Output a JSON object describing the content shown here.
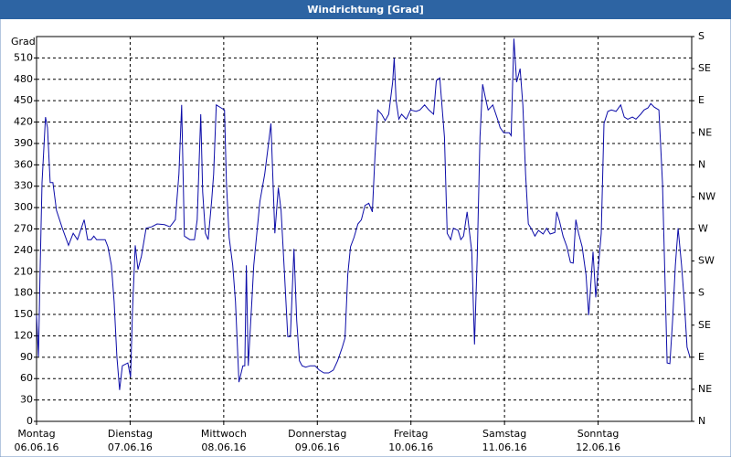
{
  "chart_data": {
    "type": "line",
    "title": "Windrichtung [Grad]",
    "ylabel": "Grad",
    "xlim": [
      0,
      168
    ],
    "xticks": [
      {
        "value": 0,
        "label": "Montag"
      },
      {
        "value": 24,
        "label": "Dienstag"
      },
      {
        "value": 48,
        "label": "Mittwoch"
      },
      {
        "value": 72,
        "label": "Donnerstag"
      },
      {
        "value": 96,
        "label": "Freitag"
      },
      {
        "value": 120,
        "label": "Samstag"
      },
      {
        "value": 144,
        "label": "Sonntag"
      }
    ],
    "xtick_dates": [
      "06.06.16",
      "07.06.16",
      "08.06.16",
      "09.06.16",
      "10.06.16",
      "11.06.16",
      "12.06.16"
    ],
    "ylim": [
      0,
      540
    ],
    "yticks": [
      0,
      30,
      60,
      90,
      120,
      150,
      180,
      210,
      240,
      270,
      300,
      330,
      360,
      390,
      420,
      450,
      480,
      510
    ],
    "y2lim": [
      0,
      540
    ],
    "y2ticks": [
      {
        "value": 0,
        "label": "N"
      },
      {
        "value": 45,
        "label": "NE"
      },
      {
        "value": 90,
        "label": "E"
      },
      {
        "value": 135,
        "label": "SE"
      },
      {
        "value": 180,
        "label": "S"
      },
      {
        "value": 225,
        "label": "SW"
      },
      {
        "value": 270,
        "label": "W"
      },
      {
        "value": 315,
        "label": "NW"
      },
      {
        "value": 360,
        "label": "N"
      },
      {
        "value": 405,
        "label": "NE"
      },
      {
        "value": 450,
        "label": "E"
      },
      {
        "value": 495,
        "label": "SE"
      },
      {
        "value": 540,
        "label": "S"
      }
    ],
    "grid": true,
    "series": [
      {
        "name": "Windrichtung",
        "color": "#0c0ca8",
        "x": [
          0,
          0.5,
          0.9,
          1.4,
          1.9,
          2.3,
          2.8,
          3.5,
          4.2,
          5.1,
          6.6,
          8.2,
          9.4,
          10.5,
          12.2,
          13.1,
          14.0,
          14.7,
          15.4,
          16.4,
          17.6,
          18.3,
          19.2,
          19.9,
          20.6,
          21.3,
          22.0,
          23.4,
          24.1,
          24.6,
          25.3,
          26.0,
          26.9,
          28.1,
          29.5,
          30.9,
          32.8,
          34.2,
          35.6,
          36.5,
          37.2,
          37.9,
          39.3,
          40.5,
          41.2,
          42.1,
          42.6,
          43.3,
          44.0,
          44.9,
          45.4,
          46.1,
          47.3,
          48.2,
          48.7,
          49.4,
          50.3,
          51.0,
          51.9,
          52.9,
          53.4,
          53.8,
          54.3,
          55.2,
          55.7,
          56.6,
          57.3,
          58.5,
          59.4,
          60.1,
          61.1,
          62.0,
          62.7,
          63.6,
          64.4,
          65.1,
          66.0,
          66.7,
          67.4,
          68.1,
          69.0,
          70.2,
          71.4,
          72.5,
          73.7,
          74.9,
          76.1,
          77.2,
          78.4,
          79.1,
          79.8,
          80.5,
          81.4,
          82.4,
          83.3,
          84.2,
          85.2,
          86.1,
          86.8,
          87.5,
          88.5,
          89.4,
          90.3,
          91.3,
          91.7,
          92.2,
          92.9,
          93.6,
          94.8,
          95.9,
          97.3,
          98.3,
          99.5,
          100.6,
          101.8,
          102.5,
          103.4,
          104.6,
          105.3,
          106.2,
          106.9,
          108.1,
          108.8,
          109.5,
          110.4,
          111.6,
          112.3,
          113.0,
          113.7,
          114.4,
          115.1,
          115.8,
          117.0,
          118.2,
          118.9,
          119.8,
          121.2,
          121.7,
          122.4,
          123.1,
          124.0,
          124.7,
          125.4,
          126.1,
          126.8,
          127.8,
          128.7,
          129.9,
          130.8,
          131.7,
          132.9,
          133.4,
          134.1,
          135.0,
          136.0,
          136.9,
          137.6,
          138.3,
          139.0,
          139.9,
          140.9,
          141.6,
          142.3,
          142.7,
          143.4,
          144.1,
          144.8,
          145.5,
          146.5,
          147.4,
          148.6,
          149.8,
          150.7,
          151.6,
          152.8,
          153.7,
          154.9,
          155.8,
          156.8,
          157.5,
          158.4,
          159.6,
          160.5,
          161.2,
          161.7,
          162.4,
          163.1,
          163.8,
          164.5,
          165.4,
          166.1,
          166.8,
          167.5
        ],
        "values": [
          149,
          91,
          206,
          335,
          386,
          427,
          412,
          335,
          335,
          296,
          271,
          247,
          264,
          255,
          283,
          255,
          255,
          260,
          255,
          255,
          255,
          245,
          219,
          168,
          91,
          44,
          78,
          82,
          62,
          155,
          247,
          213,
          232,
          271,
          273,
          277,
          276,
          273,
          283,
          347,
          444,
          260,
          255,
          255,
          283,
          431,
          322,
          264,
          255,
          309,
          347,
          444,
          440,
          437,
          335,
          258,
          219,
          168,
          55,
          78,
          78,
          219,
          78,
          168,
          219,
          271,
          309,
          347,
          386,
          418,
          264,
          328,
          296,
          206,
          119,
          119,
          242,
          142,
          85,
          78,
          76,
          78,
          78,
          72,
          68,
          68,
          72,
          85,
          104,
          117,
          206,
          245,
          258,
          277,
          283,
          303,
          306,
          294,
          373,
          437,
          431,
          422,
          431,
          476,
          510,
          450,
          424,
          431,
          424,
          437,
          435,
          437,
          444,
          437,
          431,
          478,
          482,
          399,
          264,
          255,
          271,
          268,
          255,
          260,
          294,
          238,
          108,
          232,
          399,
          473,
          454,
          437,
          444,
          424,
          412,
          405,
          405,
          401,
          537,
          476,
          495,
          444,
          347,
          277,
          271,
          260,
          268,
          263,
          271,
          263,
          265,
          294,
          281,
          260,
          245,
          223,
          222,
          283,
          264,
          245,
          206,
          149,
          206,
          238,
          174,
          219,
          264,
          418,
          435,
          437,
          435,
          444,
          427,
          424,
          427,
          424,
          431,
          437,
          440,
          446,
          441,
          437,
          335,
          187,
          82,
          81,
          142,
          219,
          271,
          219,
          168,
          104,
          91
        ]
      }
    ]
  }
}
